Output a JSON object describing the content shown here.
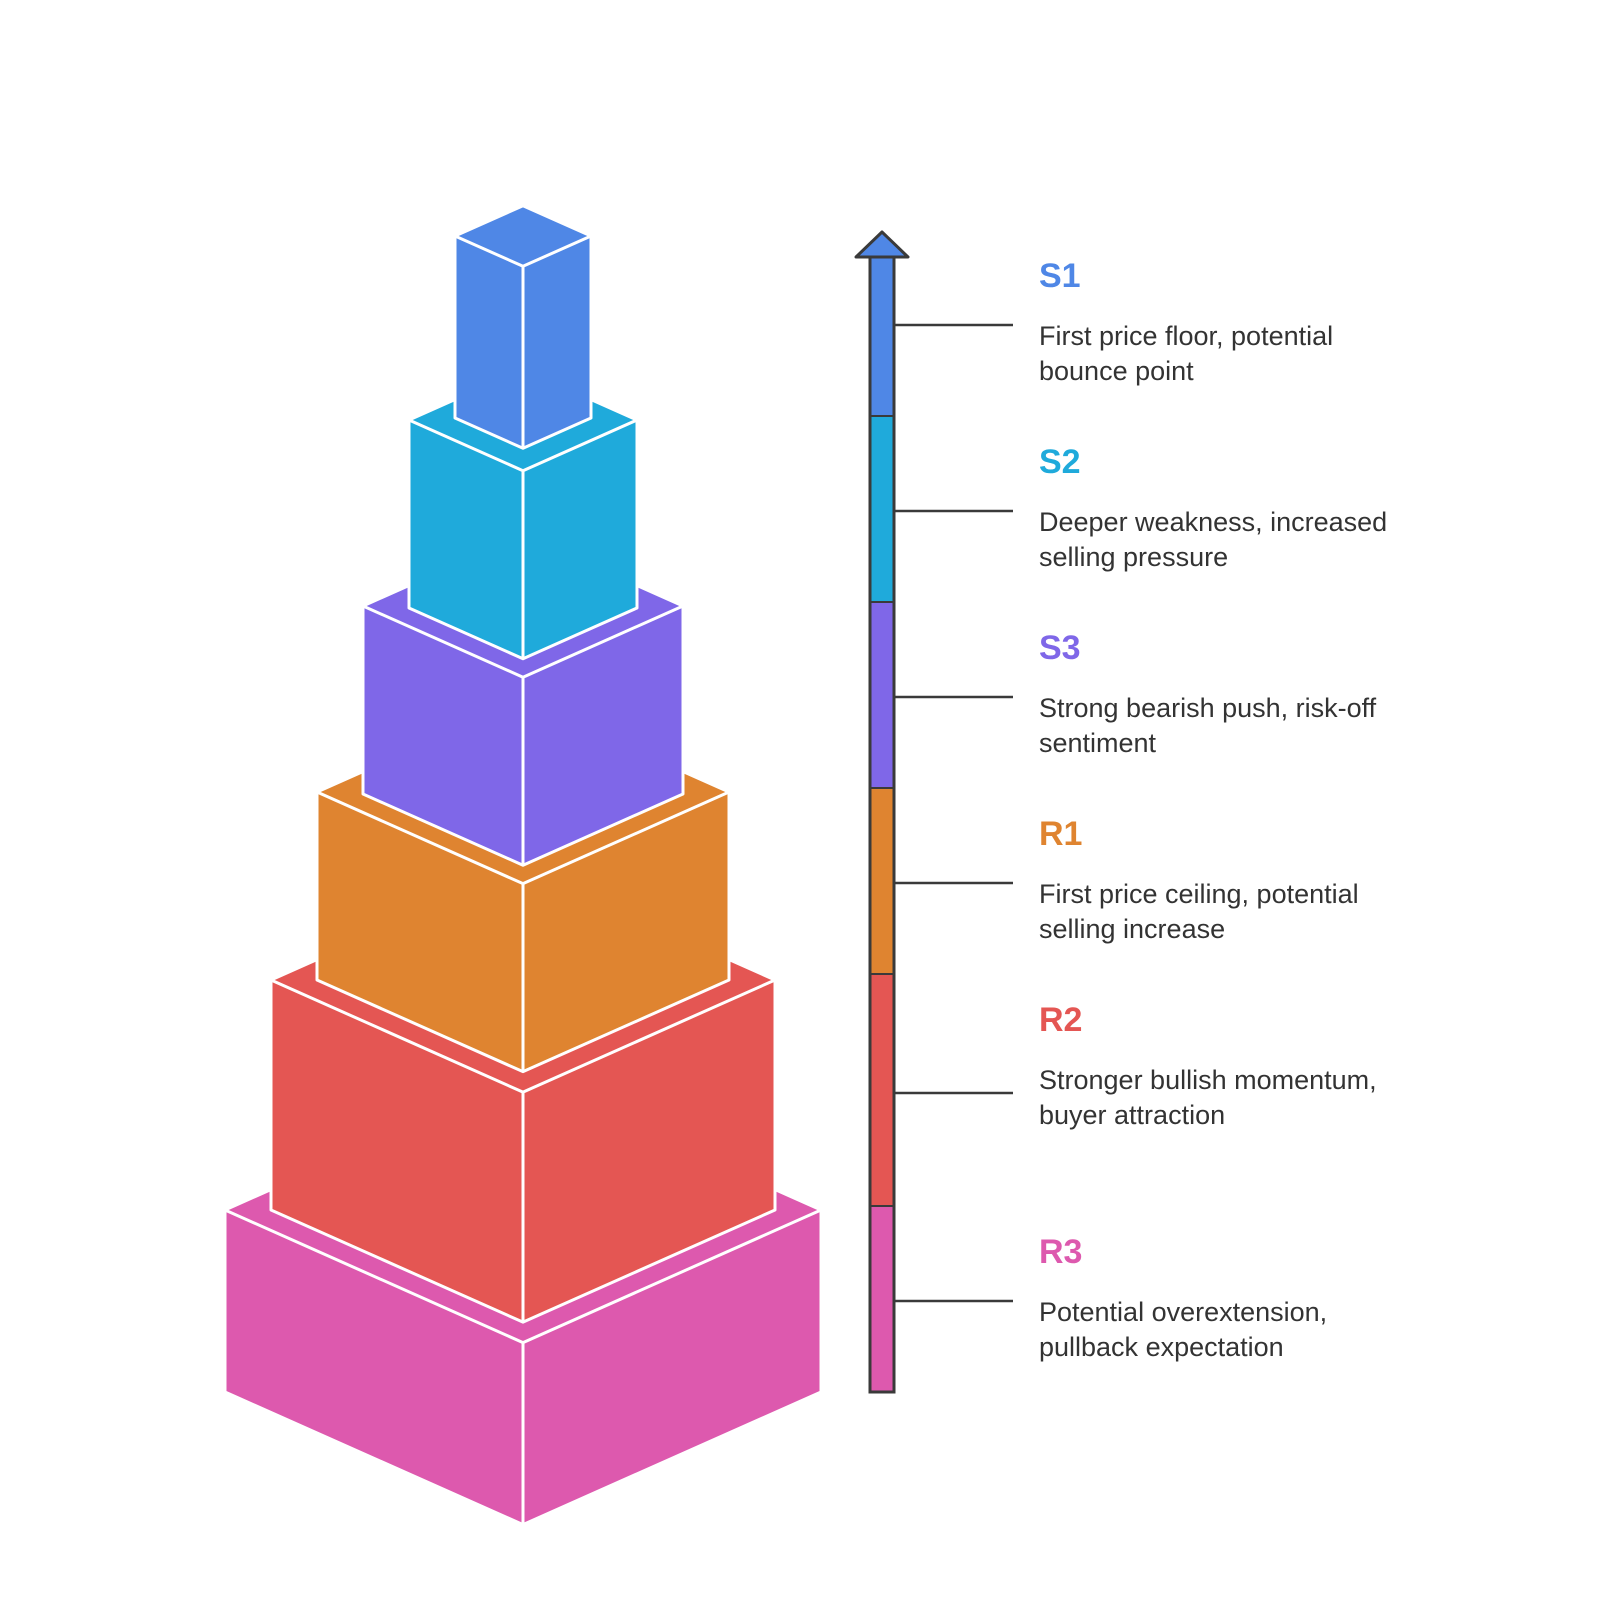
{
  "levels": [
    {
      "label": "S1",
      "description": "First price floor, potential bounce point",
      "color": "#4F87E6"
    },
    {
      "label": "S2",
      "description": "Deeper weakness, increased selling pressure",
      "color": "#1FAADB"
    },
    {
      "label": "S3",
      "description": "Strong bearish push, risk-off sentiment",
      "color": "#7F67E8"
    },
    {
      "label": "R1",
      "description": "First price ceiling, potential selling increase",
      "color": "#DF8430"
    },
    {
      "label": "R2",
      "description": "Stronger bullish momentum, buyer attraction",
      "color": "#E45653"
    },
    {
      "label": "R3",
      "description": "Potential overextension, pullback expectation",
      "color": "#DD59AE"
    }
  ],
  "arrow": {
    "direction": "up",
    "outline_color": "#3a3a3a"
  }
}
